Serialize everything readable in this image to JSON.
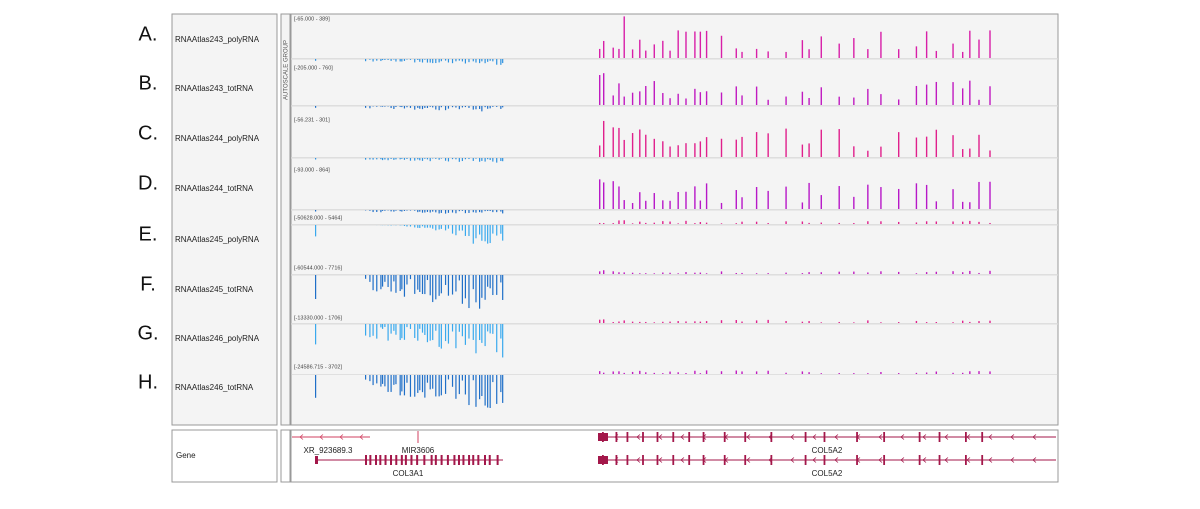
{
  "tracks": [
    {
      "letter": "A.",
      "name": "RNAAtlas243_polyRNA",
      "range": "[-65.000 - 389]"
    },
    {
      "letter": "B.",
      "name": "RNAAtlas243_totRNA",
      "range": "[-205.000 - 760]"
    },
    {
      "letter": "C.",
      "name": "RNAAtlas244_polyRNA",
      "range": "[-56.231 - 301]"
    },
    {
      "letter": "D.",
      "name": "RNAAtlas244_totRNA",
      "range": "[-93.000 - 864]"
    },
    {
      "letter": "E.",
      "name": "RNAAtlas245_polyRNA",
      "range": "[-50628.000 - 5464]"
    },
    {
      "letter": "F.",
      "name": "RNAAtlas245_totRNA",
      "range": "[-60544.000 - 7716]"
    },
    {
      "letter": "G.",
      "name": "RNAAtlas246_polyRNA",
      "range": "[-13330.000 - 1706]"
    },
    {
      "letter": "H.",
      "name": "RNAAtlas246_totRNA",
      "range": "[-24586.715 - 3702]"
    }
  ],
  "autoscale": "AUTOSCALE GROUP",
  "gene_track": {
    "name": "Gene",
    "labels": [
      "XR_923689.3",
      "MIR3606",
      "COL3A1",
      "COL5A2",
      "COL5A2"
    ]
  }
}
